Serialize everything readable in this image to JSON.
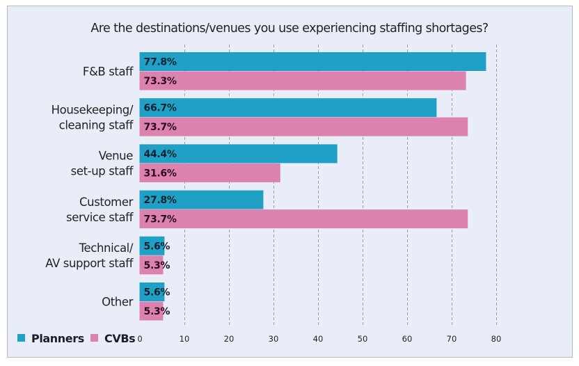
{
  "chart_data": {
    "type": "bar",
    "orientation": "horizontal",
    "title": "Are the destinations/venues you use experiencing staffing shortages?",
    "xlabel": "",
    "ylabel": "",
    "xlim": [
      0,
      80
    ],
    "xticks": [
      0,
      10,
      20,
      30,
      40,
      50,
      60,
      70,
      80
    ],
    "grid": "vertical dashed",
    "legend_position": "bottom-left",
    "categories": [
      [
        "F&B staff"
      ],
      [
        "Housekeeping/",
        "cleaning staff"
      ],
      [
        "Venue",
        "set-up staff"
      ],
      [
        "Customer",
        "service staff"
      ],
      [
        "Technical/",
        "AV support staff"
      ],
      [
        "Other"
      ]
    ],
    "series": [
      {
        "name": "Planners",
        "color": "#1fa0c4",
        "label_color": "#0f2233",
        "values": [
          77.8,
          66.7,
          44.4,
          27.8,
          5.6,
          5.6
        ],
        "labels": [
          "77.8%",
          "66.7%",
          "44.4%",
          "27.8%",
          "5.6%",
          "5.6%"
        ]
      },
      {
        "name": "CVBs",
        "color": "#dc82ae",
        "label_color": "#2a0a1c",
        "values": [
          73.3,
          73.7,
          31.6,
          73.7,
          5.3,
          5.3
        ],
        "labels": [
          "73.3%",
          "73.7%",
          "31.6%",
          "73.7%",
          "5.3%",
          "5.3%"
        ]
      }
    ]
  }
}
